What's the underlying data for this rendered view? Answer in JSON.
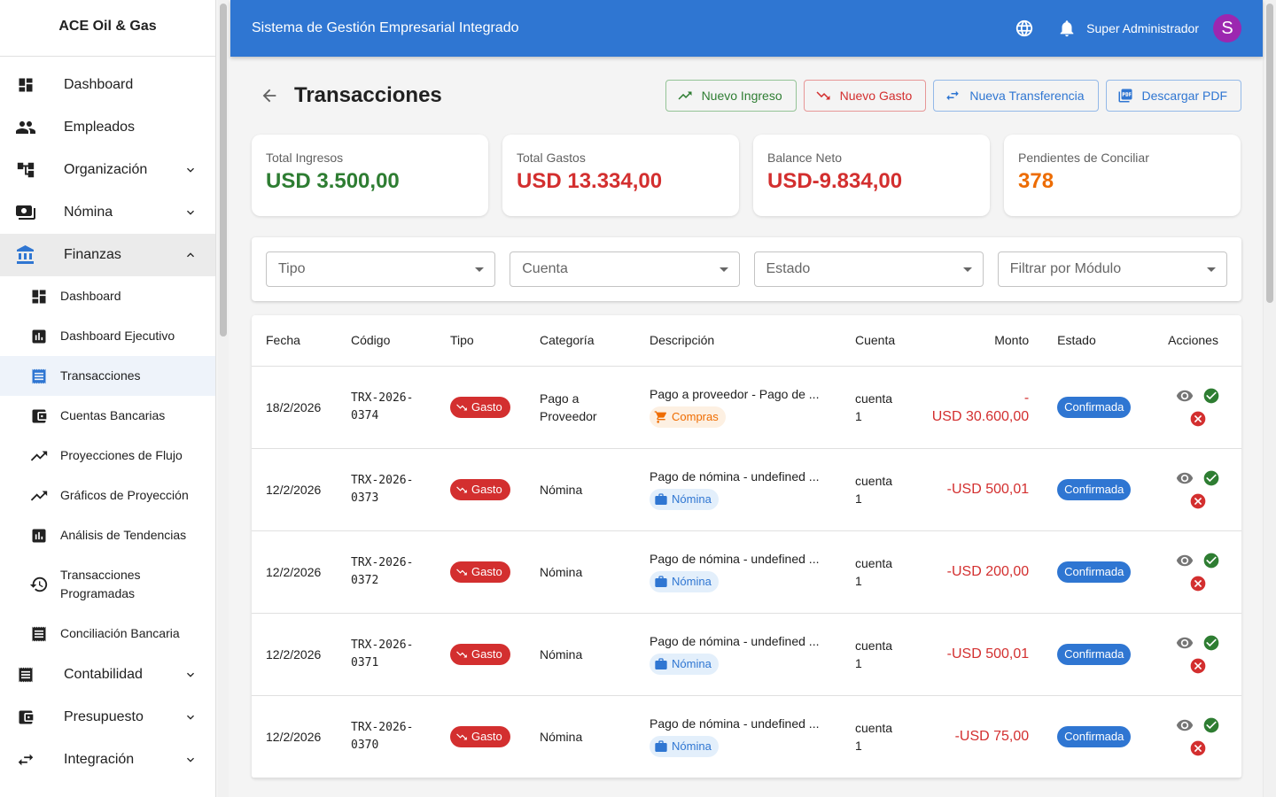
{
  "sidebar": {
    "brand": "ACE Oil & Gas",
    "items": [
      {
        "label": "Dashboard",
        "icon": "dashboard-icon"
      },
      {
        "label": "Empleados",
        "icon": "people-icon"
      },
      {
        "label": "Organización",
        "icon": "org-tree-icon"
      },
      {
        "label": "Nómina",
        "icon": "payments-icon"
      },
      {
        "label": "Finanzas",
        "icon": "bank-icon"
      },
      {
        "label": "Contabilidad",
        "icon": "receipt-icon"
      },
      {
        "label": "Presupuesto",
        "icon": "wallet-icon"
      },
      {
        "label": "Integración",
        "icon": "swap-icon"
      }
    ],
    "finanzas_sub": [
      {
        "label": "Dashboard",
        "icon": "dashboard-icon"
      },
      {
        "label": "Dashboard Ejecutivo",
        "icon": "bar-chart-icon"
      },
      {
        "label": "Transacciones",
        "icon": "receipt-icon"
      },
      {
        "label": "Cuentas Bancarias",
        "icon": "wallet-icon"
      },
      {
        "label": "Proyecciones de Flujo",
        "icon": "trending-up-icon"
      },
      {
        "label": "Gráficos de Proyección",
        "icon": "trending-up-icon"
      },
      {
        "label": "Análisis de Tendencias",
        "icon": "bar-chart-icon"
      },
      {
        "label": "Transacciones Programadas",
        "icon": "history-icon"
      },
      {
        "label": "Conciliación Bancaria",
        "icon": "receipt-icon"
      }
    ]
  },
  "header": {
    "title": "Sistema de Gestión Empresarial Integrado",
    "user_name": "Super Administrador",
    "avatar_initial": "S"
  },
  "page": {
    "title": "Transacciones",
    "buttons": {
      "nuevo_ingreso": "Nuevo Ingreso",
      "nuevo_gasto": "Nuevo Gasto",
      "nueva_transferencia": "Nueva Transferencia",
      "descargar_pdf": "Descargar PDF"
    }
  },
  "summary": [
    {
      "label": "Total Ingresos",
      "value": "USD 3.500,00",
      "color": "#2e7d32"
    },
    {
      "label": "Total Gastos",
      "value": "USD 13.334,00",
      "color": "#d32f2f"
    },
    {
      "label": "Balance Neto",
      "value": "USD-9.834,00",
      "color": "#d32f2f"
    },
    {
      "label": "Pendientes de Conciliar",
      "value": "378",
      "color": "#ed6c02"
    }
  ],
  "filters": {
    "tipo": "Tipo",
    "cuenta": "Cuenta",
    "estado": "Estado",
    "modulo": "Filtrar por Módulo"
  },
  "table": {
    "headers": {
      "fecha": "Fecha",
      "codigo": "Código",
      "tipo": "Tipo",
      "categoria": "Categoría",
      "descripcion": "Descripción",
      "cuenta": "Cuenta",
      "monto": "Monto",
      "estado": "Estado",
      "acciones": "Acciones"
    },
    "rows": [
      {
        "fecha": "18/2/2026",
        "codigo": "TRX-2026-0374",
        "tipo": "Gasto",
        "categoria": "Pago a Proveedor",
        "descripcion": "Pago a proveedor - Pago de ...",
        "modulo": "Compras",
        "cuenta": "cuenta 1",
        "monto": "-USD 30.600,00",
        "estado": "Confirmada"
      },
      {
        "fecha": "12/2/2026",
        "codigo": "TRX-2026-0373",
        "tipo": "Gasto",
        "categoria": "Nómina",
        "descripcion": "Pago de nómina - undefined ...",
        "modulo": "Nómina",
        "cuenta": "cuenta 1",
        "monto": "-USD 500,01",
        "estado": "Confirmada"
      },
      {
        "fecha": "12/2/2026",
        "codigo": "TRX-2026-0372",
        "tipo": "Gasto",
        "categoria": "Nómina",
        "descripcion": "Pago de nómina - undefined ...",
        "modulo": "Nómina",
        "cuenta": "cuenta 1",
        "monto": "-USD 200,00",
        "estado": "Confirmada"
      },
      {
        "fecha": "12/2/2026",
        "codigo": "TRX-2026-0371",
        "tipo": "Gasto",
        "categoria": "Nómina",
        "descripcion": "Pago de nómina - undefined ...",
        "modulo": "Nómina",
        "cuenta": "cuenta 1",
        "monto": "-USD 500,01",
        "estado": "Confirmada"
      },
      {
        "fecha": "12/2/2026",
        "codigo": "TRX-2026-0370",
        "tipo": "Gasto",
        "categoria": "Nómina",
        "descripcion": "Pago de nómina - undefined ...",
        "modulo": "Nómina",
        "cuenta": "cuenta 1",
        "monto": "-USD 75,00",
        "estado": "Confirmada"
      }
    ]
  },
  "colors": {
    "primary": "#2f76d2",
    "success": "#2e7d32",
    "error": "#d32f2f",
    "warning": "#ed6c02",
    "avatar": "#9c27b0"
  }
}
